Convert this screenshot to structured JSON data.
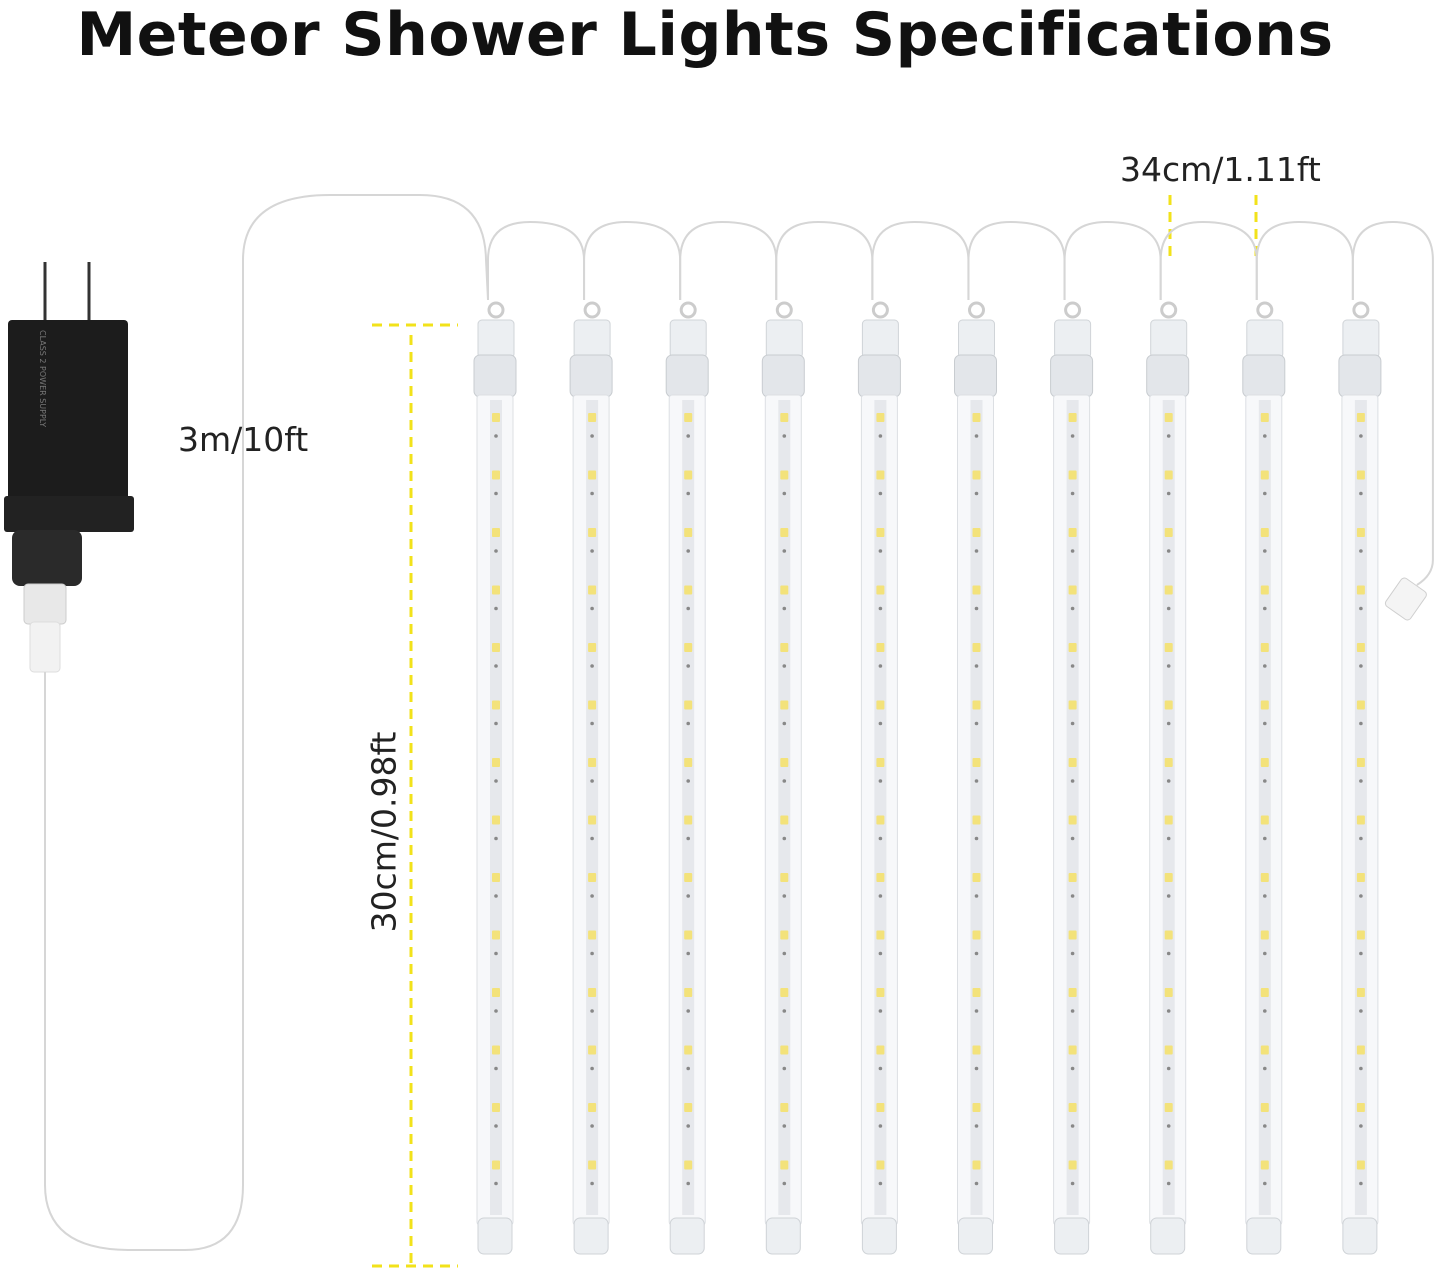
{
  "title": "Meteor Shower Lights Specifications",
  "labels": {
    "cable_length": "3m/10ft",
    "tube_length": "30cm/0.98ft",
    "tube_spacing": "34cm/1.11ft"
  },
  "product": {
    "tube_count": 10,
    "adapter_lettering": "CLASS 2 POWER SUPPLY"
  },
  "colors": {
    "dimension_line": "#f2e21a",
    "led": "#f3e27a",
    "adapter": "#1c1c1c"
  }
}
